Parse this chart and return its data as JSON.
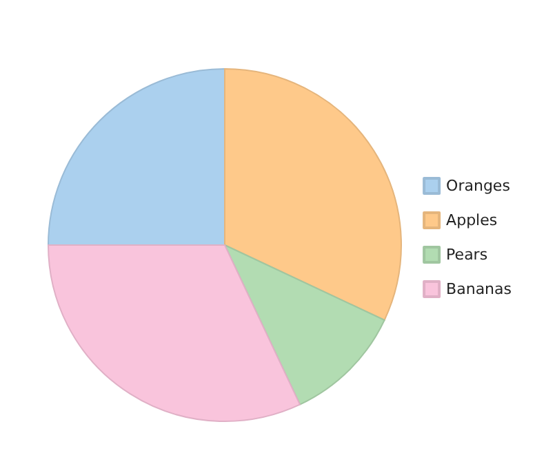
{
  "chart_data": {
    "type": "pie",
    "categories": [
      "Oranges",
      "Apples",
      "Pears",
      "Bananas"
    ],
    "values": [
      25,
      32,
      11,
      32
    ],
    "colors": [
      "#abd0ee",
      "#fec98a",
      "#b2dcb2",
      "#f9c4dc"
    ],
    "legend": "right"
  }
}
